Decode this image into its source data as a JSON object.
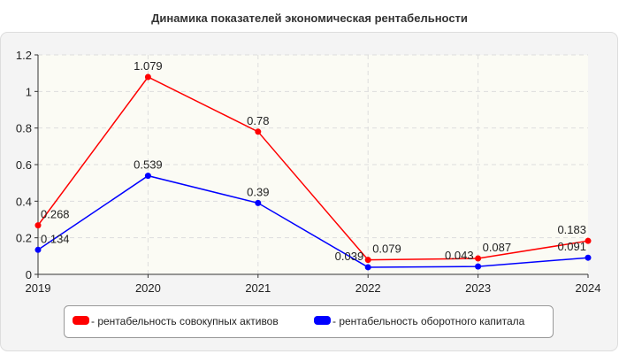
{
  "chart_data": {
    "type": "line",
    "title": "Динамика показателей экономическая рентабельности",
    "categories": [
      "2019",
      "2020",
      "2021",
      "2022",
      "2023",
      "2024"
    ],
    "ylim": [
      0,
      1.2
    ],
    "yticks": [
      "0",
      "0.2",
      "0.4",
      "0.6",
      "0.8",
      "1",
      "1.2"
    ],
    "grid": true,
    "legend_placement": "bottom",
    "series": [
      {
        "name": "- рентабельность совокупных активов",
        "color": "#ff0000",
        "values": [
          0.268,
          1.079,
          0.78,
          0.079,
          0.087,
          0.183
        ]
      },
      {
        "name": "- рентабельность оборотного капитала",
        "color": "#0000ff",
        "values": [
          0.134,
          0.539,
          0.39,
          0.039,
          0.043,
          0.091
        ]
      }
    ]
  }
}
